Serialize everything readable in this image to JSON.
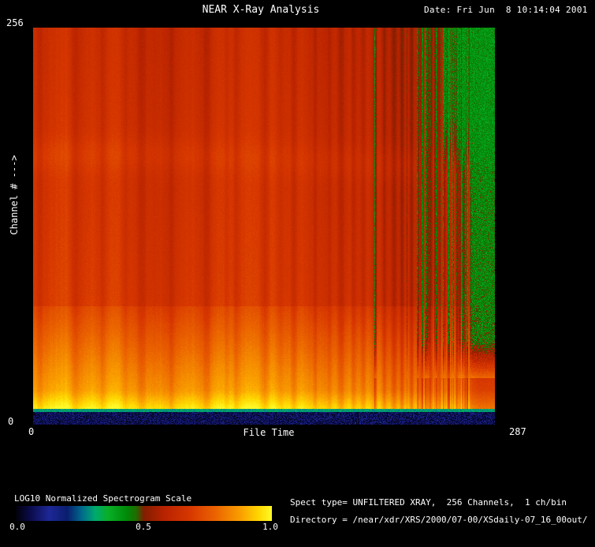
{
  "window": {
    "background": "#000000",
    "text_color": "#ffffff"
  },
  "header": {
    "title": "NEAR X-Ray Analysis",
    "date": "Date: Fri Jun  8 10:14:04 2001"
  },
  "axes": {
    "y_max": "256",
    "y_min": "0",
    "y_title": "Channel # --->",
    "x_min": "0",
    "x_max": "287",
    "x_title": "File Time"
  },
  "colorbar": {
    "title": "LOG10 Normalized Spectrogram Scale",
    "tick_labels": [
      "0.0",
      "0.5",
      "1.0"
    ]
  },
  "footer": {
    "spect_type_line": "Spect type= UNFILTERED XRAY,  256 Channels,  1 ch/bin",
    "directory_line": "Directory = /near/xdr/XRS/2000/07-00/XSdaily-07_16_00out/"
  },
  "chart_data": {
    "type": "heatmap",
    "title": "NEAR X-Ray Analysis",
    "xlabel": "File Time",
    "ylabel": "Channel # --->",
    "x_range": [
      0,
      287
    ],
    "y_range": [
      0,
      256
    ],
    "colorbar": {
      "label": "LOG10 Normalized Spectrogram Scale",
      "range": [
        0.0,
        1.0
      ],
      "ticks": [
        0.0,
        0.5,
        1.0
      ]
    },
    "features": [
      "Bright yellow band at low channels (~10-22) across all file times",
      "Orange falloff from channel ~22 up to ~76, step boundary at ~76",
      "Near-uniform red-orange continuum above channel ~76",
      "Brighter horizontal line near channel ~170 spanning full width",
      "Dark navy background band at channels 0-8 with blue speckles",
      "Teal separator line at channels ~8-10",
      "Green dropout columns after time ~210, top-right green patch after ~255, solid green block after ~272",
      "Many darker vertical stripes (data gaps), denser toward late times"
    ],
    "colormap_stops": [
      {
        "v": 0.0,
        "c": [
          2,
          2,
          10
        ]
      },
      {
        "v": 0.05,
        "c": [
          10,
          10,
          70
        ]
      },
      {
        "v": 0.13,
        "c": [
          30,
          40,
          150
        ]
      },
      {
        "v": 0.2,
        "c": [
          10,
          30,
          110
        ]
      },
      {
        "v": 0.26,
        "c": [
          0,
          110,
          140
        ]
      },
      {
        "v": 0.31,
        "c": [
          0,
          170,
          110
        ]
      },
      {
        "v": 0.36,
        "c": [
          10,
          175,
          40
        ]
      },
      {
        "v": 0.43,
        "c": [
          0,
          140,
          10
        ]
      },
      {
        "v": 0.47,
        "c": [
          30,
          110,
          0
        ]
      },
      {
        "v": 0.5,
        "c": [
          130,
          30,
          0
        ]
      },
      {
        "v": 0.58,
        "c": [
          185,
          35,
          0
        ]
      },
      {
        "v": 0.68,
        "c": [
          215,
          55,
          0
        ]
      },
      {
        "v": 0.78,
        "c": [
          235,
          100,
          0
        ]
      },
      {
        "v": 0.88,
        "c": [
          250,
          160,
          0
        ]
      },
      {
        "v": 0.95,
        "c": [
          255,
          215,
          0
        ]
      },
      {
        "v": 1.0,
        "c": [
          255,
          250,
          40
        ]
      }
    ],
    "bands_by_channel": [
      {
        "ch0": 0,
        "ch1": 8,
        "v0": 0.06,
        "v1": 0.06,
        "noise": 0.05,
        "label": "dark background band"
      },
      {
        "ch0": 8,
        "ch1": 10,
        "v0": 0.3,
        "v1": 0.3,
        "noise": 0.03,
        "label": "teal separator line"
      },
      {
        "ch0": 10,
        "ch1": 22,
        "v0": 0.97,
        "v1": 0.86,
        "noise": 0.012,
        "label": "bright yellow low channels"
      },
      {
        "ch0": 22,
        "ch1": 76,
        "v0": 0.86,
        "v1": 0.7,
        "noise": 0.012,
        "label": "orange falloff"
      },
      {
        "ch0": 76,
        "ch1": 256,
        "v0": 0.665,
        "v1": 0.615,
        "noise": 0.012,
        "label": "red continuum"
      }
    ],
    "bright_channel_band": {
      "ch_center": 170,
      "ch_sigma": 8,
      "amp": 0.035,
      "wave_amp": 4
    },
    "dark_time_stripes": [
      {
        "t": 4,
        "w": 2,
        "a": 0.035
      },
      {
        "t": 26,
        "w": 3,
        "a": 0.05
      },
      {
        "t": 43,
        "w": 2.5,
        "a": 0.04
      },
      {
        "t": 57,
        "w": 2,
        "a": 0.03
      },
      {
        "t": 67,
        "w": 3,
        "a": 0.05
      },
      {
        "t": 86,
        "w": 2.5,
        "a": 0.045
      },
      {
        "t": 108,
        "w": 3,
        "a": 0.05
      },
      {
        "t": 120,
        "w": 2,
        "a": 0.035
      },
      {
        "t": 126,
        "w": 2,
        "a": 0.04
      },
      {
        "t": 144,
        "w": 2.5,
        "a": 0.05
      },
      {
        "t": 153,
        "w": 2,
        "a": 0.04
      },
      {
        "t": 162,
        "w": 2,
        "a": 0.045
      },
      {
        "t": 175,
        "w": 1.5,
        "a": 0.05
      },
      {
        "t": 184,
        "w": 1.5,
        "a": 0.04
      },
      {
        "t": 191,
        "w": 2,
        "a": 0.06
      },
      {
        "t": 199,
        "w": 1.5,
        "a": 0.05
      },
      {
        "t": 205,
        "w": 1.5,
        "a": 0.05
      },
      {
        "t": 212,
        "w": 1.5,
        "a": 0.06
      },
      {
        "t": 218,
        "w": 1.5,
        "a": 0.07
      },
      {
        "t": 224,
        "w": 1.5,
        "a": 0.06
      },
      {
        "t": 229,
        "w": 1.2,
        "a": 0.07
      },
      {
        "t": 235,
        "w": 1.2,
        "a": 0.08
      },
      {
        "t": 241,
        "w": 1.2,
        "a": 0.07
      },
      {
        "t": 247,
        "w": 1.2,
        "a": 0.08
      },
      {
        "t": 252,
        "w": 1.2,
        "a": 0.07
      },
      {
        "t": 258,
        "w": 1.2,
        "a": 0.08
      },
      {
        "t": 263,
        "w": 1.2,
        "a": 0.07
      },
      {
        "t": 269,
        "w": 1.2,
        "a": 0.08
      }
    ],
    "bright_time_stripes": [
      {
        "t": 20,
        "w": 6,
        "a": 0.02
      },
      {
        "t": 50,
        "w": 8,
        "a": 0.015
      },
      {
        "t": 95,
        "w": 6,
        "a": 0.02
      },
      {
        "t": 115,
        "w": 8,
        "a": 0.025
      },
      {
        "t": 135,
        "w": 6,
        "a": 0.02
      },
      {
        "t": 150,
        "w": 5,
        "a": 0.02
      }
    ],
    "green_dropout": {
      "onset_time": 210,
      "patch_time": 255,
      "solid_time": 272,
      "value": 0.4
    }
  }
}
